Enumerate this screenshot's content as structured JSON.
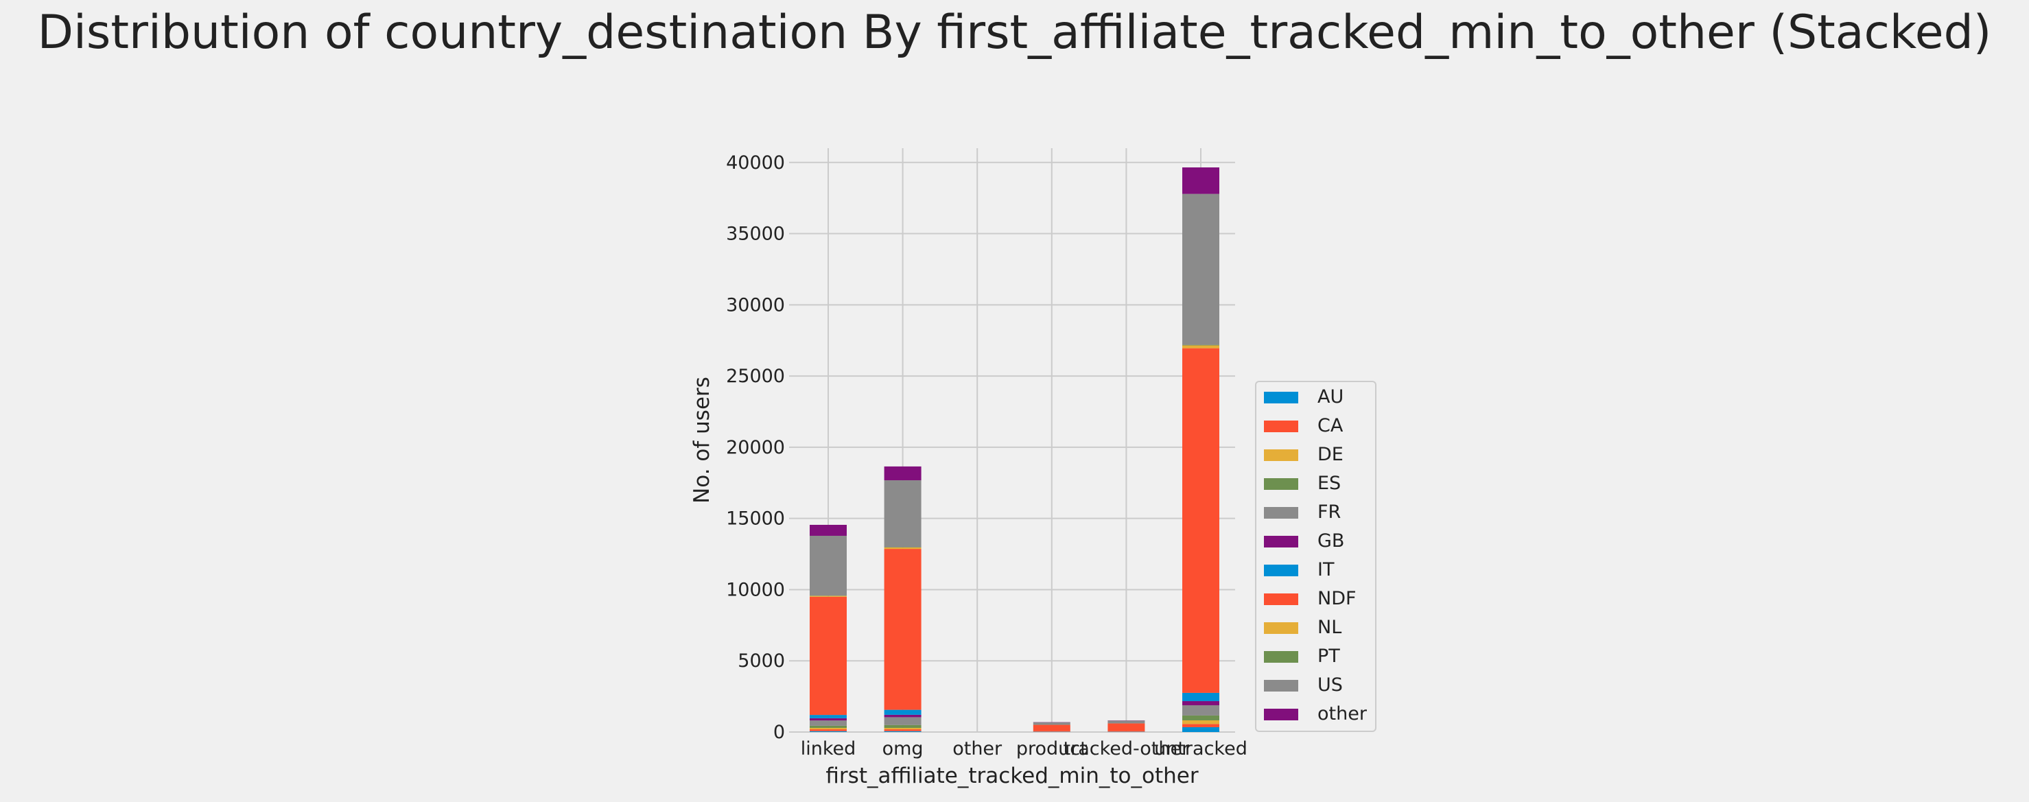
{
  "chart_data": {
    "type": "bar",
    "stacked": true,
    "title": "Distribution of country_destination By first_affiliate_tracked_min_to_other (Stacked)",
    "xlabel": "first_affiliate_tracked_min_to_other",
    "ylabel": "No. of users",
    "categories": [
      "linked",
      "omg",
      "other",
      "product",
      "tracked-other",
      "untracked"
    ],
    "ylim": [
      0,
      41000
    ],
    "yticks": [
      0,
      5000,
      10000,
      15000,
      20000,
      25000,
      30000,
      35000,
      40000
    ],
    "grid": true,
    "legend_position": "right",
    "series": [
      {
        "name": "AU",
        "color": "#008fd5",
        "values": [
          60,
          60,
          0,
          5,
          5,
          340
        ]
      },
      {
        "name": "CA",
        "color": "#fc4f30",
        "values": [
          130,
          130,
          0,
          8,
          8,
          220
        ]
      },
      {
        "name": "DE",
        "color": "#e5ae38",
        "values": [
          100,
          100,
          0,
          5,
          5,
          260
        ]
      },
      {
        "name": "ES",
        "color": "#6d904f",
        "values": [
          150,
          200,
          0,
          7,
          7,
          340
        ]
      },
      {
        "name": "FR",
        "color": "#8b8b8b",
        "values": [
          370,
          550,
          0,
          15,
          15,
          720
        ]
      },
      {
        "name": "GB",
        "color": "#810f7c",
        "values": [
          160,
          170,
          0,
          8,
          8,
          290
        ]
      },
      {
        "name": "IT",
        "color": "#008fd5",
        "values": [
          230,
          350,
          0,
          5,
          5,
          580
        ]
      },
      {
        "name": "NDF",
        "color": "#fc4f30",
        "values": [
          8300,
          11300,
          0,
          450,
          550,
          24200
        ]
      },
      {
        "name": "NL",
        "color": "#e5ae38",
        "values": [
          60,
          100,
          0,
          2,
          2,
          200
        ]
      },
      {
        "name": "PT",
        "color": "#6d904f",
        "values": [
          20,
          20,
          0,
          1,
          1,
          40
        ]
      },
      {
        "name": "US",
        "color": "#8b8b8b",
        "values": [
          4200,
          4700,
          0,
          180,
          200,
          10600
        ]
      },
      {
        "name": "other",
        "color": "#810f7c",
        "values": [
          770,
          970,
          0,
          14,
          14,
          1860
        ]
      }
    ]
  }
}
